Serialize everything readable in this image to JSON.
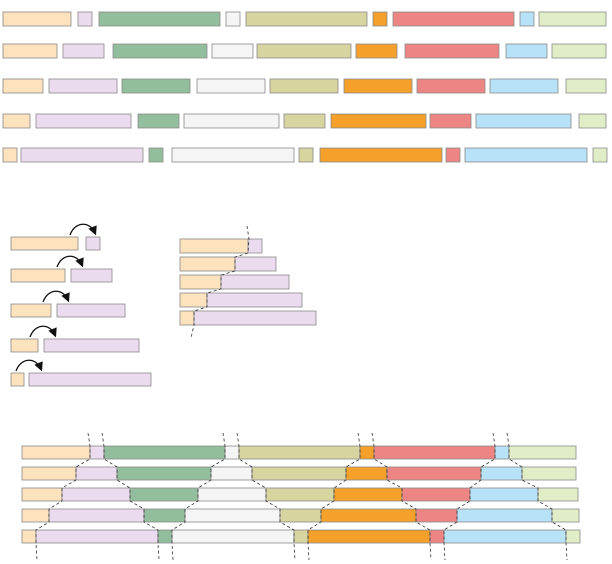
{
  "palette": {
    "peach": "#FCE2BD",
    "lavender": "#EADCEE",
    "green": "#93BE9D",
    "white": "#F5F5F5",
    "khaki": "#D6D49F",
    "orange": "#F5A02A",
    "red": "#EE8585",
    "blue": "#B8E2F7",
    "lime": "#E1EDC6",
    "border": "#8A8A8A",
    "dash": "#333333",
    "arrow": "#111111"
  },
  "diagram": {
    "top_rows": 5,
    "top_row_segment_colors": [
      "peach",
      "lavender",
      "green",
      "white",
      "khaki",
      "orange",
      "red",
      "blue",
      "lime"
    ],
    "shift_steps_left": 5,
    "shift_steps_middle": 5,
    "bottom_rows": 5,
    "bottom_row_segment_colors": [
      "peach",
      "lavender",
      "green",
      "white",
      "khaki",
      "orange",
      "red",
      "blue",
      "lime"
    ],
    "boundary_cut_count": 8
  }
}
